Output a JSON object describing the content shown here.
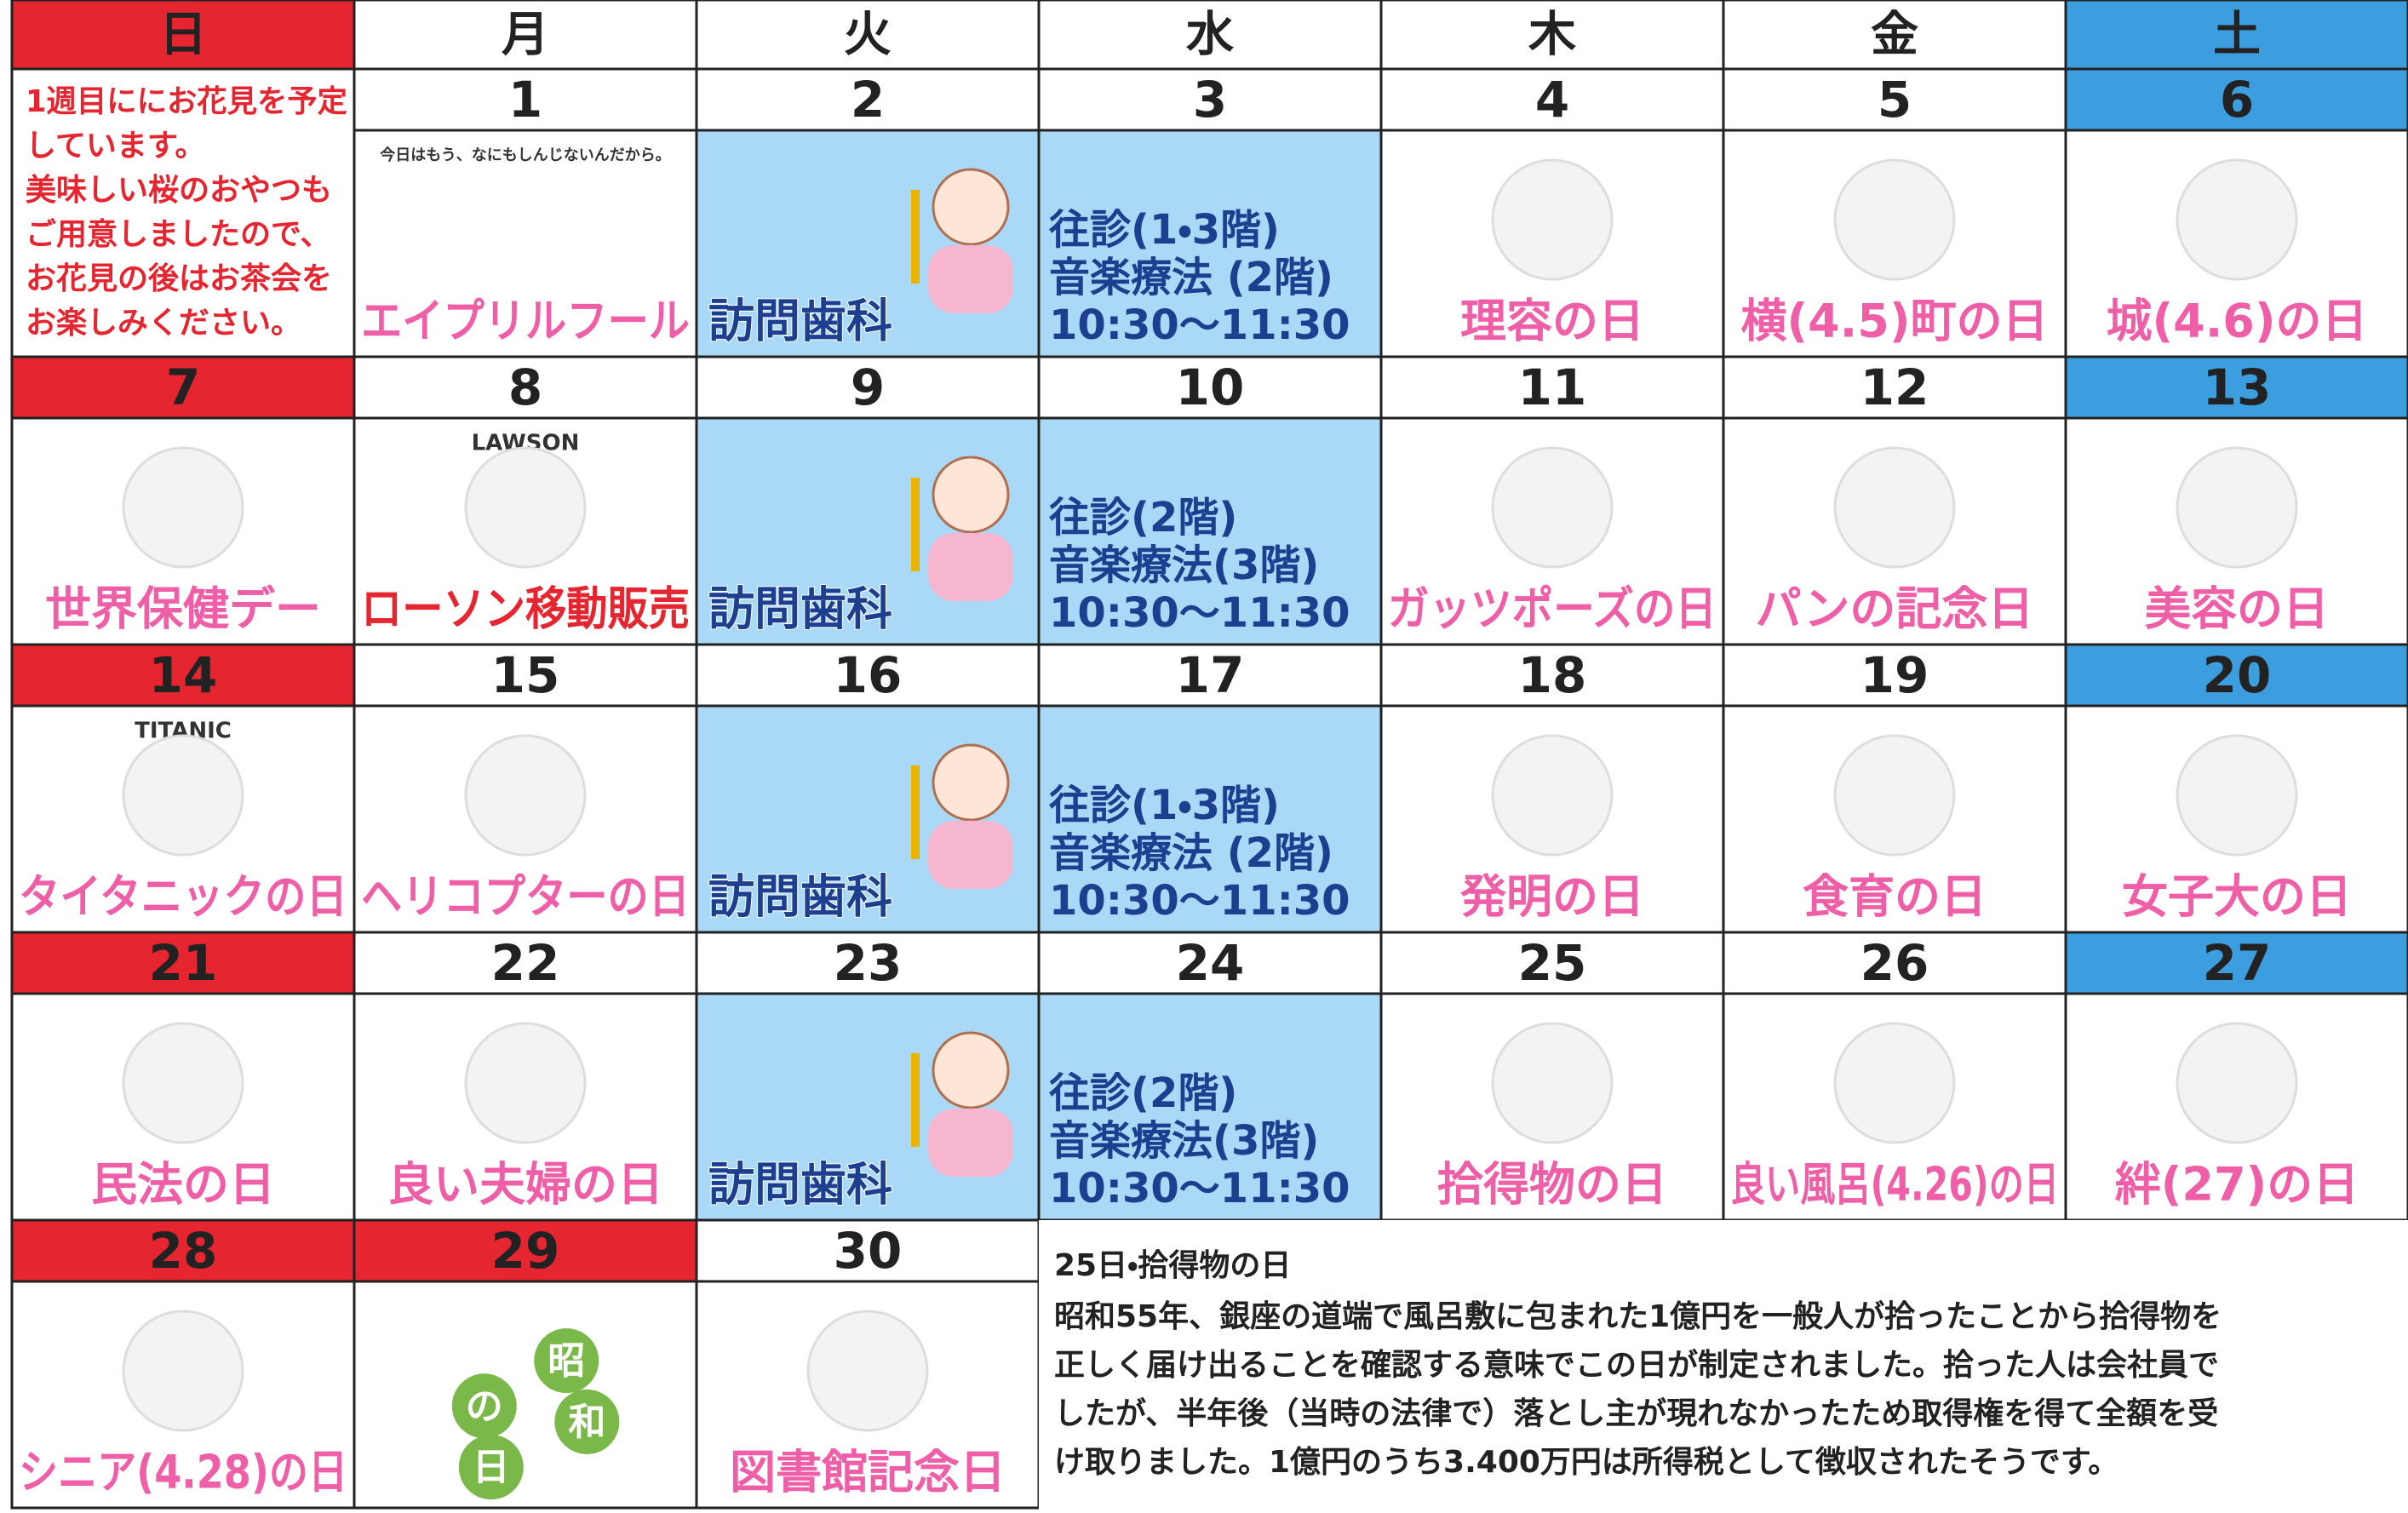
{
  "header": {
    "days": [
      "日",
      "月",
      "火",
      "水",
      "木",
      "金",
      "土"
    ]
  },
  "weeks": [
    [
      {
        "memo": [
          "1週目ににお花見を予定",
          "しています。",
          "美味しい桜のおやつも",
          "ご用意しましたので、",
          "お花見の後はお茶会を",
          "お楽しみください。"
        ]
      },
      {
        "date": 1,
        "label": "エイプリルフール",
        "caption": "今日はもう、なにもしんじないんだから。"
      },
      {
        "date": 2,
        "label": "訪問歯科"
      },
      {
        "date": 3,
        "lines": [
          "往診(1・3階)",
          "音楽療法 (2階)",
          "10:30～11:30"
        ]
      },
      {
        "date": 4,
        "label": "理容の日"
      },
      {
        "date": 5,
        "label": "横(4.5)町の日"
      },
      {
        "date": 6,
        "label": "城(4.6)の日"
      }
    ],
    [
      {
        "date": 7,
        "label": "世界保健デー"
      },
      {
        "date": 8,
        "label": "ローソン移動販売",
        "caption": "LAWSON"
      },
      {
        "date": 9,
        "label": "訪問歯科"
      },
      {
        "date": 10,
        "lines": [
          "往診(2階)",
          "音楽療法(3階)",
          "10:30～11:30"
        ]
      },
      {
        "date": 11,
        "label": "ガッツポーズの日"
      },
      {
        "date": 12,
        "label": "パンの記念日"
      },
      {
        "date": 13,
        "label": "美容の日"
      }
    ],
    [
      {
        "date": 14,
        "label": "タイタニックの日",
        "caption": "TITANIC"
      },
      {
        "date": 15,
        "label": "ヘリコプターの日"
      },
      {
        "date": 16,
        "label": "訪問歯科"
      },
      {
        "date": 17,
        "lines": [
          "往診(1・3階)",
          "音楽療法 (2階)",
          "10:30～11:30"
        ]
      },
      {
        "date": 18,
        "label": "発明の日"
      },
      {
        "date": 19,
        "label": "食育の日"
      },
      {
        "date": 20,
        "label": "女子大の日"
      }
    ],
    [
      {
        "date": 21,
        "label": "民法の日"
      },
      {
        "date": 22,
        "label": "良い夫婦の日"
      },
      {
        "date": 23,
        "label": "訪問歯科"
      },
      {
        "date": 24,
        "lines": [
          "往診(2階)",
          "音楽療法(3階)",
          "10:30～11:30"
        ]
      },
      {
        "date": 25,
        "label": "拾得物の日"
      },
      {
        "date": 26,
        "label": "良い風呂(4.26)の日"
      },
      {
        "date": 27,
        "label": "絆(27)の日"
      }
    ],
    [
      {
        "date": 28,
        "label": "シニア(4.28)の日"
      },
      {
        "date": 29,
        "chars": [
          "昭",
          "和",
          "の",
          "日"
        ]
      },
      {
        "date": 30,
        "label": "図書館記念日"
      }
    ]
  ],
  "note": {
    "title": "25日・拾得物の日",
    "lines": [
      "昭和55年、銀座の道端で風呂敷に包まれた1億円を一般人が拾ったことから拾得物を",
      "正しく届け出ることを確認する意味でこの日が制定されました。拾った人は会社員で",
      "したが、半年後（当時の法律で）落とし主が現れなかったため取得権を得て全額を受",
      "け取りました。1億円のうち3.400万円は所得税として徴収されたそうです。"
    ]
  }
}
